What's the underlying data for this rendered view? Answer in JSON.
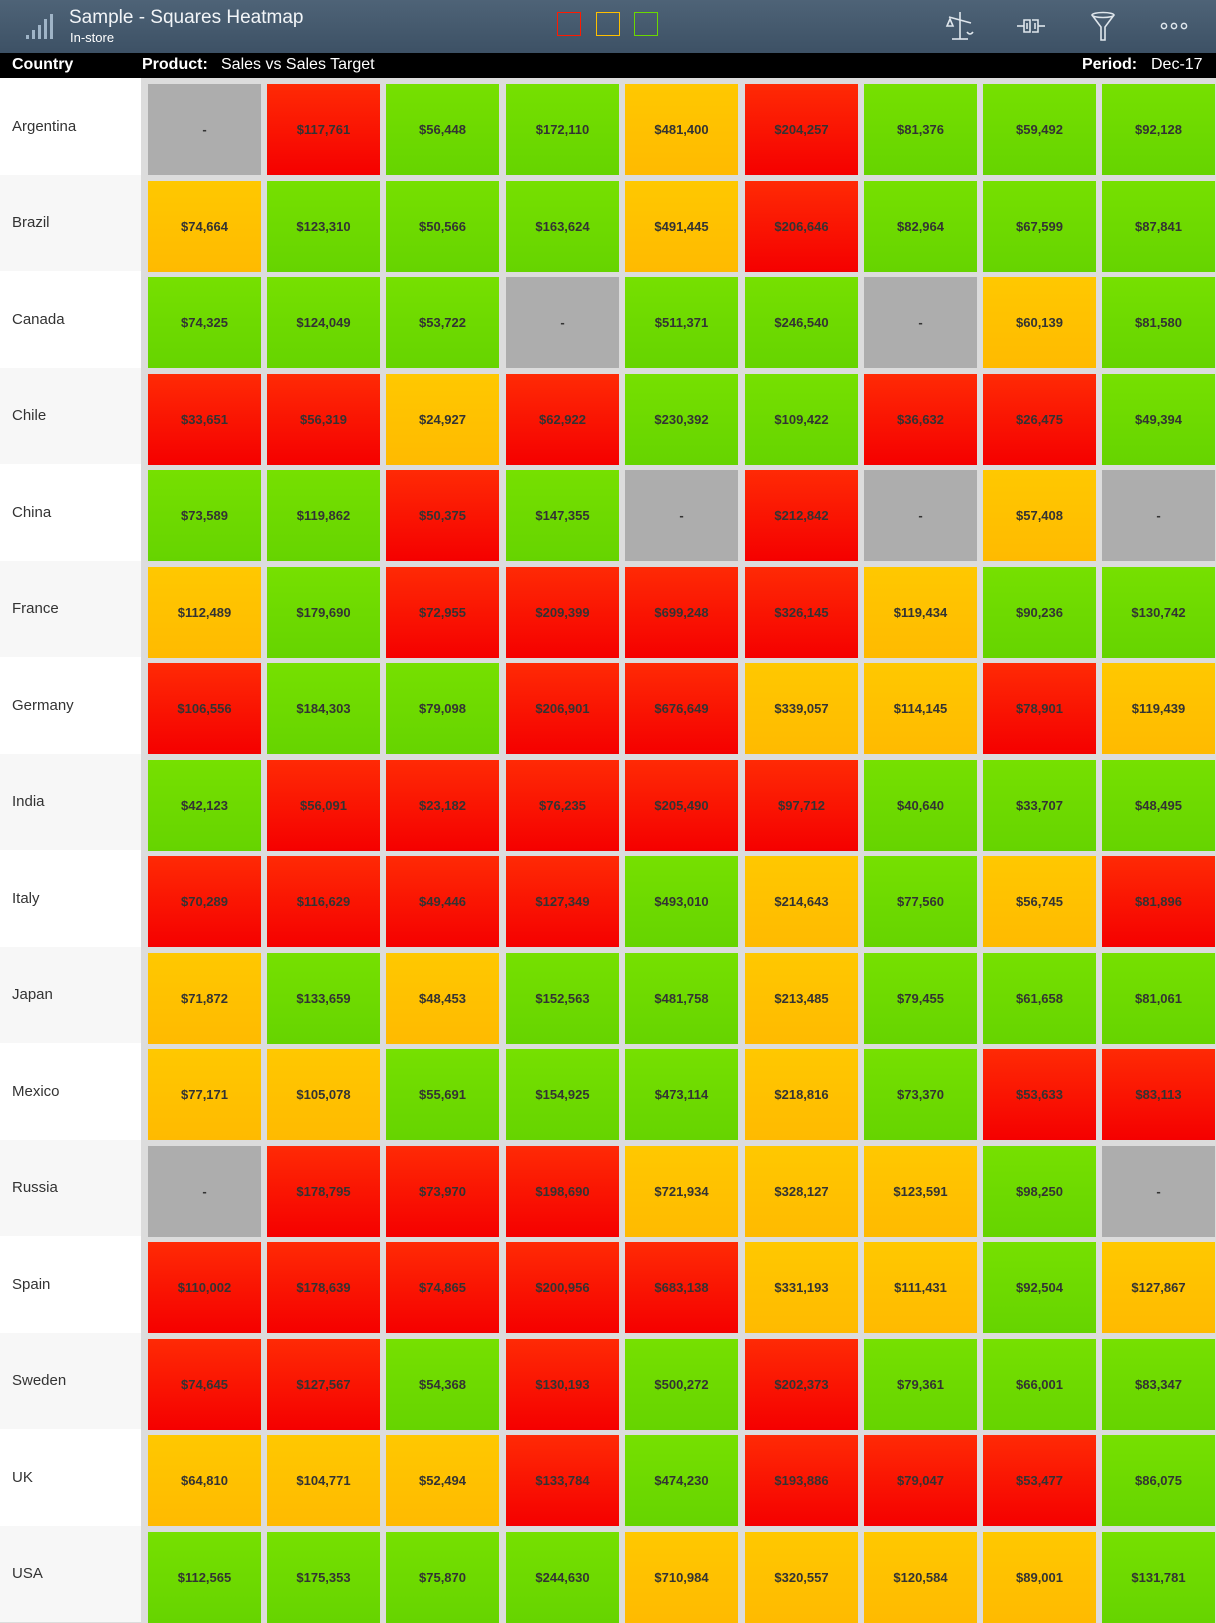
{
  "app": {
    "title": "Sample - Squares Heatmap",
    "subtitle": "In-store"
  },
  "toolbar": {
    "icons": [
      "balance-scale-icon",
      "connector-icon",
      "filter-icon",
      "more-icon"
    ]
  },
  "legend_colors": [
    "#ff1a00",
    "#ffc000",
    "#6cd800"
  ],
  "header": {
    "country_label": "Country",
    "product_label": "Product:",
    "product_value": "Sales vs Sales Target",
    "period_label": "Period:",
    "period_value": "Dec-17"
  },
  "rows": [
    {
      "country": "Argentina",
      "values": [
        "-",
        "$117,761",
        "$56,448",
        "$172,110",
        "$481,400",
        "$204,257",
        "$81,376",
        "$59,492",
        "$92,128"
      ],
      "status": [
        "grey",
        "red",
        "green",
        "green",
        "amber",
        "red",
        "green",
        "green",
        "green"
      ]
    },
    {
      "country": "Brazil",
      "values": [
        "$74,664",
        "$123,310",
        "$50,566",
        "$163,624",
        "$491,445",
        "$206,646",
        "$82,964",
        "$67,599",
        "$87,841"
      ],
      "status": [
        "amber",
        "green",
        "green",
        "green",
        "amber",
        "red",
        "green",
        "green",
        "green"
      ]
    },
    {
      "country": "Canada",
      "values": [
        "$74,325",
        "$124,049",
        "$53,722",
        "-",
        "$511,371",
        "$246,540",
        "-",
        "$60,139",
        "$81,580"
      ],
      "status": [
        "green",
        "green",
        "green",
        "grey",
        "green",
        "green",
        "grey",
        "amber",
        "green"
      ]
    },
    {
      "country": "Chile",
      "values": [
        "$33,651",
        "$56,319",
        "$24,927",
        "$62,922",
        "$230,392",
        "$109,422",
        "$36,632",
        "$26,475",
        "$49,394"
      ],
      "status": [
        "red",
        "red",
        "amber",
        "red",
        "green",
        "green",
        "red",
        "red",
        "green"
      ]
    },
    {
      "country": "China",
      "values": [
        "$73,589",
        "$119,862",
        "$50,375",
        "$147,355",
        "-",
        "$212,842",
        "-",
        "$57,408",
        "-"
      ],
      "status": [
        "green",
        "green",
        "red",
        "green",
        "grey",
        "red",
        "grey",
        "amber",
        "grey"
      ]
    },
    {
      "country": "France",
      "values": [
        "$112,489",
        "$179,690",
        "$72,955",
        "$209,399",
        "$699,248",
        "$326,145",
        "$119,434",
        "$90,236",
        "$130,742"
      ],
      "status": [
        "amber",
        "green",
        "red",
        "red",
        "red",
        "red",
        "amber",
        "green",
        "green"
      ]
    },
    {
      "country": "Germany",
      "values": [
        "$106,556",
        "$184,303",
        "$79,098",
        "$206,901",
        "$676,649",
        "$339,057",
        "$114,145",
        "$78,901",
        "$119,439"
      ],
      "status": [
        "red",
        "green",
        "green",
        "red",
        "red",
        "amber",
        "amber",
        "red",
        "amber"
      ]
    },
    {
      "country": "India",
      "values": [
        "$42,123",
        "$56,091",
        "$23,182",
        "$76,235",
        "$205,490",
        "$97,712",
        "$40,640",
        "$33,707",
        "$48,495"
      ],
      "status": [
        "green",
        "red",
        "red",
        "red",
        "red",
        "red",
        "green",
        "green",
        "green"
      ]
    },
    {
      "country": "Italy",
      "values": [
        "$70,289",
        "$116,629",
        "$49,446",
        "$127,349",
        "$493,010",
        "$214,643",
        "$77,560",
        "$56,745",
        "$81,896"
      ],
      "status": [
        "red",
        "red",
        "red",
        "red",
        "green",
        "amber",
        "green",
        "amber",
        "red"
      ]
    },
    {
      "country": "Japan",
      "values": [
        "$71,872",
        "$133,659",
        "$48,453",
        "$152,563",
        "$481,758",
        "$213,485",
        "$79,455",
        "$61,658",
        "$81,061"
      ],
      "status": [
        "amber",
        "green",
        "amber",
        "green",
        "green",
        "amber",
        "green",
        "green",
        "green"
      ]
    },
    {
      "country": "Mexico",
      "values": [
        "$77,171",
        "$105,078",
        "$55,691",
        "$154,925",
        "$473,114",
        "$218,816",
        "$73,370",
        "$53,633",
        "$83,113"
      ],
      "status": [
        "amber",
        "amber",
        "green",
        "green",
        "green",
        "amber",
        "green",
        "red",
        "red"
      ]
    },
    {
      "country": "Russia",
      "values": [
        "-",
        "$178,795",
        "$73,970",
        "$198,690",
        "$721,934",
        "$328,127",
        "$123,591",
        "$98,250",
        "-"
      ],
      "status": [
        "grey",
        "red",
        "red",
        "red",
        "amber",
        "amber",
        "amber",
        "green",
        "grey"
      ]
    },
    {
      "country": "Spain",
      "values": [
        "$110,002",
        "$178,639",
        "$74,865",
        "$200,956",
        "$683,138",
        "$331,193",
        "$111,431",
        "$92,504",
        "$127,867"
      ],
      "status": [
        "red",
        "red",
        "red",
        "red",
        "red",
        "amber",
        "amber",
        "green",
        "amber"
      ]
    },
    {
      "country": "Sweden",
      "values": [
        "$74,645",
        "$127,567",
        "$54,368",
        "$130,193",
        "$500,272",
        "$202,373",
        "$79,361",
        "$66,001",
        "$83,347"
      ],
      "status": [
        "red",
        "red",
        "green",
        "red",
        "green",
        "red",
        "green",
        "green",
        "green"
      ]
    },
    {
      "country": "UK",
      "values": [
        "$64,810",
        "$104,771",
        "$52,494",
        "$133,784",
        "$474,230",
        "$193,886",
        "$79,047",
        "$53,477",
        "$86,075"
      ],
      "status": [
        "amber",
        "amber",
        "amber",
        "red",
        "green",
        "red",
        "red",
        "red",
        "green"
      ]
    },
    {
      "country": "USA",
      "values": [
        "$112,565",
        "$175,353",
        "$75,870",
        "$244,630",
        "$710,984",
        "$320,557",
        "$120,584",
        "$89,001",
        "$131,781"
      ],
      "status": [
        "green",
        "green",
        "green",
        "green",
        "amber",
        "amber",
        "amber",
        "amber",
        "green"
      ]
    }
  ]
}
